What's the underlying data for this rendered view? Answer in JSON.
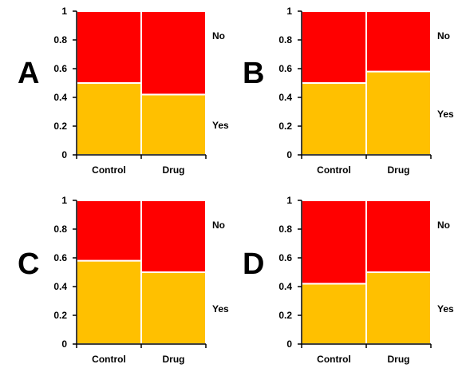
{
  "chart_data": [
    {
      "type": "bar",
      "panel_label": "A",
      "stacked": true,
      "categories": [
        "Control",
        "Drug"
      ],
      "series": [
        {
          "name": "Yes",
          "color": "#FFC000",
          "values": [
            0.5,
            0.42
          ]
        },
        {
          "name": "No",
          "color": "#FF0000",
          "values": [
            0.5,
            0.58
          ]
        }
      ],
      "ylim": [
        0,
        1
      ],
      "yticks": [
        "0",
        "0.2",
        "0.4",
        "0.6",
        "0.8",
        "1"
      ]
    },
    {
      "type": "bar",
      "panel_label": "B",
      "stacked": true,
      "categories": [
        "Control",
        "Drug"
      ],
      "series": [
        {
          "name": "Yes",
          "color": "#FFC000",
          "values": [
            0.5,
            0.58
          ]
        },
        {
          "name": "No",
          "color": "#FF0000",
          "values": [
            0.5,
            0.42
          ]
        }
      ],
      "ylim": [
        0,
        1
      ],
      "yticks": [
        "0",
        "0.2",
        "0.4",
        "0.6",
        "0.8",
        "1"
      ]
    },
    {
      "type": "bar",
      "panel_label": "C",
      "stacked": true,
      "categories": [
        "Control",
        "Drug"
      ],
      "series": [
        {
          "name": "Yes",
          "color": "#FFC000",
          "values": [
            0.58,
            0.5
          ]
        },
        {
          "name": "No",
          "color": "#FF0000",
          "values": [
            0.42,
            0.5
          ]
        }
      ],
      "ylim": [
        0,
        1
      ],
      "yticks": [
        "0",
        "0.2",
        "0.4",
        "0.6",
        "0.8",
        "1"
      ]
    },
    {
      "type": "bar",
      "panel_label": "D",
      "stacked": true,
      "categories": [
        "Control",
        "Drug"
      ],
      "series": [
        {
          "name": "Yes",
          "color": "#FFC000",
          "values": [
            0.42,
            0.5
          ]
        },
        {
          "name": "No",
          "color": "#FF0000",
          "values": [
            0.58,
            0.5
          ]
        }
      ],
      "ylim": [
        0,
        1
      ],
      "yticks": [
        "0",
        "0.2",
        "0.4",
        "0.6",
        "0.8",
        "1"
      ]
    }
  ]
}
